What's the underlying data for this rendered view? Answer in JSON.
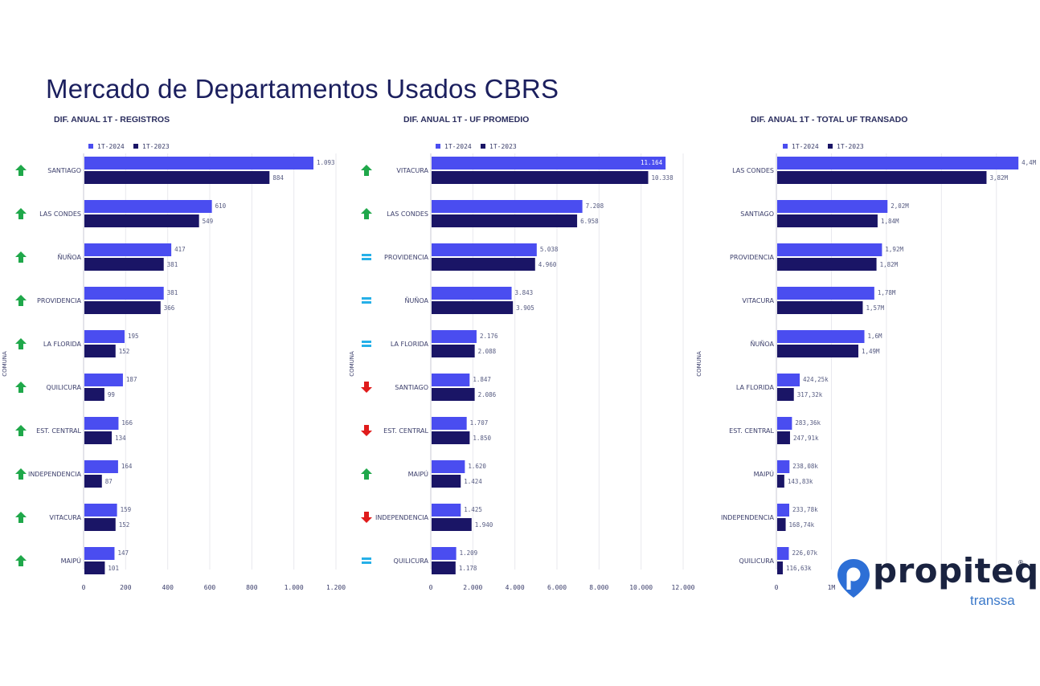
{
  "page": {
    "title": "Mercado de Departamentos Usados CBRS"
  },
  "colors": {
    "series_2024": "#4a4df0",
    "series_2023": "#1a1566",
    "up": "#1fa84a",
    "down": "#e01b1b",
    "equal": "#26b0e8",
    "grid": "#e8e8ee",
    "text": "#3a3d6a"
  },
  "legend": {
    "s2024": "1T-2024",
    "s2023": "1T-2023"
  },
  "logo": {
    "word": "propiteq",
    "sub": "transsa",
    "reg": "®"
  },
  "chart_data": [
    {
      "type": "bar",
      "orientation": "horizontal",
      "title": "DIF. ANUAL 1T - REGISTROS",
      "ylabel": "COMUNA",
      "categories": [
        "SANTIAGO",
        "LAS CONDES",
        "ÑUÑOA",
        "PROVIDENCIA",
        "LA FLORIDA",
        "QUILICURA",
        "EST. CENTRAL",
        "INDEPENDENCIA",
        "VITACURA",
        "MAIPÚ"
      ],
      "trend": [
        "up",
        "up",
        "up",
        "up",
        "up",
        "up",
        "up",
        "up",
        "up",
        "up"
      ],
      "series": [
        {
          "name": "1T-2024",
          "values": [
            1093,
            610,
            417,
            381,
            195,
            187,
            166,
            164,
            159,
            147
          ],
          "labels": [
            "1.093",
            "610",
            "417",
            "381",
            "195",
            "187",
            "166",
            "164",
            "159",
            "147"
          ]
        },
        {
          "name": "1T-2023",
          "values": [
            884,
            549,
            381,
            366,
            152,
            99,
            134,
            87,
            152,
            101
          ],
          "labels": [
            "884",
            "549",
            "381",
            "366",
            "152",
            "99",
            "134",
            "87",
            "152",
            "101"
          ]
        }
      ],
      "xlim": [
        0,
        1200
      ],
      "ticks": [
        0,
        200,
        400,
        600,
        800,
        1000,
        1200
      ],
      "tick_labels": [
        "0",
        "200",
        "400",
        "600",
        "800",
        "1.000",
        "1.200"
      ],
      "grid": true,
      "legend_position": "top-left"
    },
    {
      "type": "bar",
      "orientation": "horizontal",
      "title": "DIF. ANUAL 1T - UF PROMEDIO",
      "ylabel": "COMUNA",
      "categories": [
        "VITACURA",
        "LAS CONDES",
        "PROVIDENCIA",
        "ÑUÑOA",
        "LA FLORIDA",
        "SANTIAGO",
        "EST. CENTRAL",
        "MAIPÚ",
        "INDEPENDENCIA",
        "QUILICURA"
      ],
      "trend": [
        "up",
        "up",
        "equal",
        "equal",
        "equal",
        "down",
        "down",
        "up",
        "down",
        "equal"
      ],
      "series": [
        {
          "name": "1T-2024",
          "values": [
            11164,
            7208,
            5038,
            3843,
            2176,
            1847,
            1707,
            1620,
            1425,
            1209
          ],
          "labels": [
            "11.164",
            "7.208",
            "5.038",
            "3.843",
            "2.176",
            "1.847",
            "1.707",
            "1.620",
            "1.425",
            "1.209"
          ]
        },
        {
          "name": "1T-2023",
          "values": [
            10338,
            6958,
            4960,
            3905,
            2088,
            2086,
            1850,
            1424,
            1940,
            1178
          ],
          "labels": [
            "10.338",
            "6.958",
            "4.960",
            "3.905",
            "2.088",
            "2.086",
            "1.850",
            "1.424",
            "1.940",
            "1.178"
          ]
        }
      ],
      "xlim": [
        0,
        12000
      ],
      "ticks": [
        0,
        2000,
        4000,
        6000,
        8000,
        10000,
        12000
      ],
      "tick_labels": [
        "0",
        "2.000",
        "4.000",
        "6.000",
        "8.000",
        "10.000",
        "12.000"
      ],
      "grid": true,
      "legend_position": "top-left"
    },
    {
      "type": "bar",
      "orientation": "horizontal",
      "title": "DIF. ANUAL 1T - TOTAL UF TRANSADO",
      "ylabel": "COMUNA",
      "categories": [
        "LAS CONDES",
        "SANTIAGO",
        "PROVIDENCIA",
        "VITACURA",
        "ÑUÑOA",
        "LA FLORIDA",
        "EST. CENTRAL",
        "MAIPÚ",
        "INDEPENDENCIA",
        "QUILICURA"
      ],
      "trend": [],
      "series": [
        {
          "name": "1T-2024",
          "values": [
            4400000,
            2020000,
            1920000,
            1780000,
            1600000,
            424250,
            283360,
            238080,
            233780,
            226070
          ],
          "labels": [
            "4,4M",
            "2,02M",
            "1,92M",
            "1,78M",
            "1,6M",
            "424,25k",
            "283,36k",
            "238,08k",
            "233,78k",
            "226,07k"
          ]
        },
        {
          "name": "1T-2023",
          "values": [
            3820000,
            1840000,
            1820000,
            1570000,
            1490000,
            317320,
            247910,
            143830,
            168740,
            116630
          ],
          "labels": [
            "3,82M",
            "1,84M",
            "1,82M",
            "1,57M",
            "1,49M",
            "317,32k",
            "247,91k",
            "143,83k",
            "168,74k",
            "116,63k"
          ]
        }
      ],
      "xlim": [
        0,
        4500000
      ],
      "ticks": [
        0,
        1000000
      ],
      "tick_labels": [
        "0",
        "1M"
      ],
      "grid": true,
      "legend_position": "top-left"
    }
  ]
}
